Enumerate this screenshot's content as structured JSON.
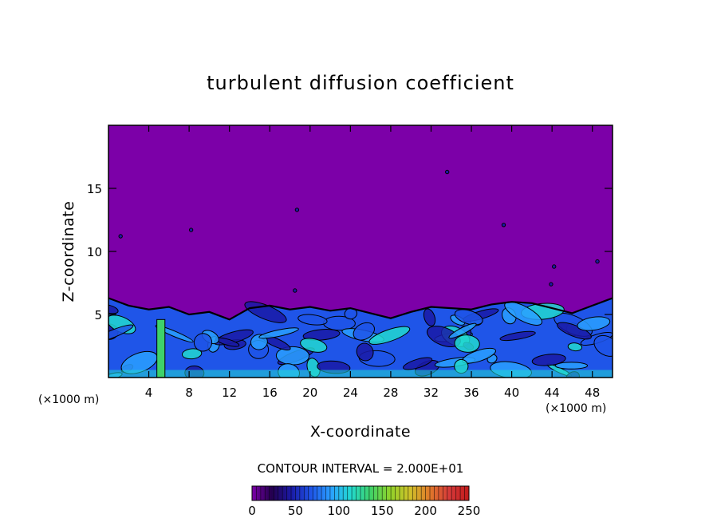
{
  "chart_data": {
    "type": "heatmap",
    "title": "turbulent diffusion coefficient",
    "xlabel": "X-coordinate",
    "ylabel": "Z-coordinate",
    "x_unit": "(×1000 m)",
    "y_unit": "(×1000 m)",
    "xlim": [
      0,
      50
    ],
    "ylim": [
      0,
      20
    ],
    "x_ticks": [
      4,
      8,
      12,
      16,
      20,
      24,
      28,
      32,
      36,
      40,
      44,
      48
    ],
    "y_ticks": [
      5,
      10,
      15
    ],
    "contour_interval_label": "CONTOUR INTERVAL = 2.000E+01",
    "colorbar": {
      "range": [
        0,
        250
      ],
      "ticks": [
        0,
        50,
        100,
        150,
        200,
        250
      ]
    },
    "background_value": 0,
    "boundary_layer_top": [
      {
        "x": 0,
        "z": 6.3
      },
      {
        "x": 2,
        "z": 5.7
      },
      {
        "x": 4,
        "z": 5.4
      },
      {
        "x": 6,
        "z": 5.6
      },
      {
        "x": 8,
        "z": 5.0
      },
      {
        "x": 10,
        "z": 5.2
      },
      {
        "x": 12,
        "z": 4.6
      },
      {
        "x": 14,
        "z": 5.5
      },
      {
        "x": 16,
        "z": 5.7
      },
      {
        "x": 18,
        "z": 5.4
      },
      {
        "x": 20,
        "z": 5.6
      },
      {
        "x": 22,
        "z": 5.3
      },
      {
        "x": 24,
        "z": 5.5
      },
      {
        "x": 26,
        "z": 5.1
      },
      {
        "x": 28,
        "z": 4.7
      },
      {
        "x": 30,
        "z": 5.2
      },
      {
        "x": 32,
        "z": 5.6
      },
      {
        "x": 34,
        "z": 5.5
      },
      {
        "x": 36,
        "z": 5.4
      },
      {
        "x": 38,
        "z": 5.8
      },
      {
        "x": 40,
        "z": 6.0
      },
      {
        "x": 42,
        "z": 5.9
      },
      {
        "x": 44,
        "z": 5.5
      },
      {
        "x": 46,
        "z": 5.1
      },
      {
        "x": 48,
        "z": 5.7
      },
      {
        "x": 50,
        "z": 6.3
      }
    ],
    "colors": {
      "background": "#7c00a8",
      "cmap": [
        "#24004f",
        "#1a1aa6",
        "#1f55e8",
        "#2aa0ff",
        "#22d9d0",
        "#3ed26a",
        "#8fd22a",
        "#d0c22a",
        "#e07a2a",
        "#d63a3a",
        "#c01a1a"
      ]
    }
  }
}
